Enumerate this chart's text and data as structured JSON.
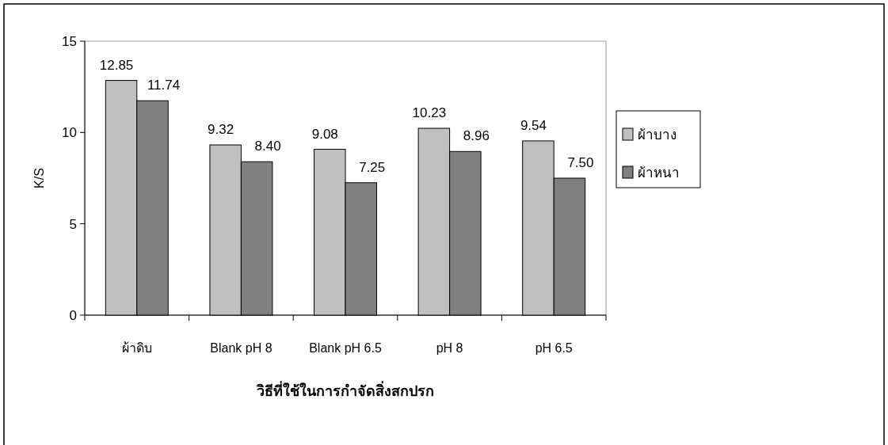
{
  "chart_data": {
    "type": "bar",
    "xlabel": "วิธีที่ใช้ในการกำจัดสิ่งสกปรก",
    "ylabel": "K/S",
    "categories": [
      "ผ้าดิบ",
      "Blank pH 8",
      "Blank pH 6.5",
      "pH 8",
      "pH 6.5"
    ],
    "series": [
      {
        "name": "ผ้าบาง",
        "color": "#c0c0c0",
        "values": [
          12.85,
          9.32,
          9.08,
          10.23,
          9.54
        ],
        "value_labels": [
          "12.85",
          "9.32",
          "9.08",
          "10.23",
          "9.54"
        ]
      },
      {
        "name": "ผ้าหนา",
        "color": "#808080",
        "values": [
          11.74,
          8.4,
          7.25,
          8.96,
          7.5
        ],
        "value_labels": [
          "11.74",
          "8.40",
          "7.25",
          "8.96",
          "7.50"
        ]
      }
    ],
    "ylim": [
      0,
      15
    ],
    "yticks": [
      0,
      5,
      10,
      15
    ],
    "grid": false,
    "legend": "right"
  }
}
